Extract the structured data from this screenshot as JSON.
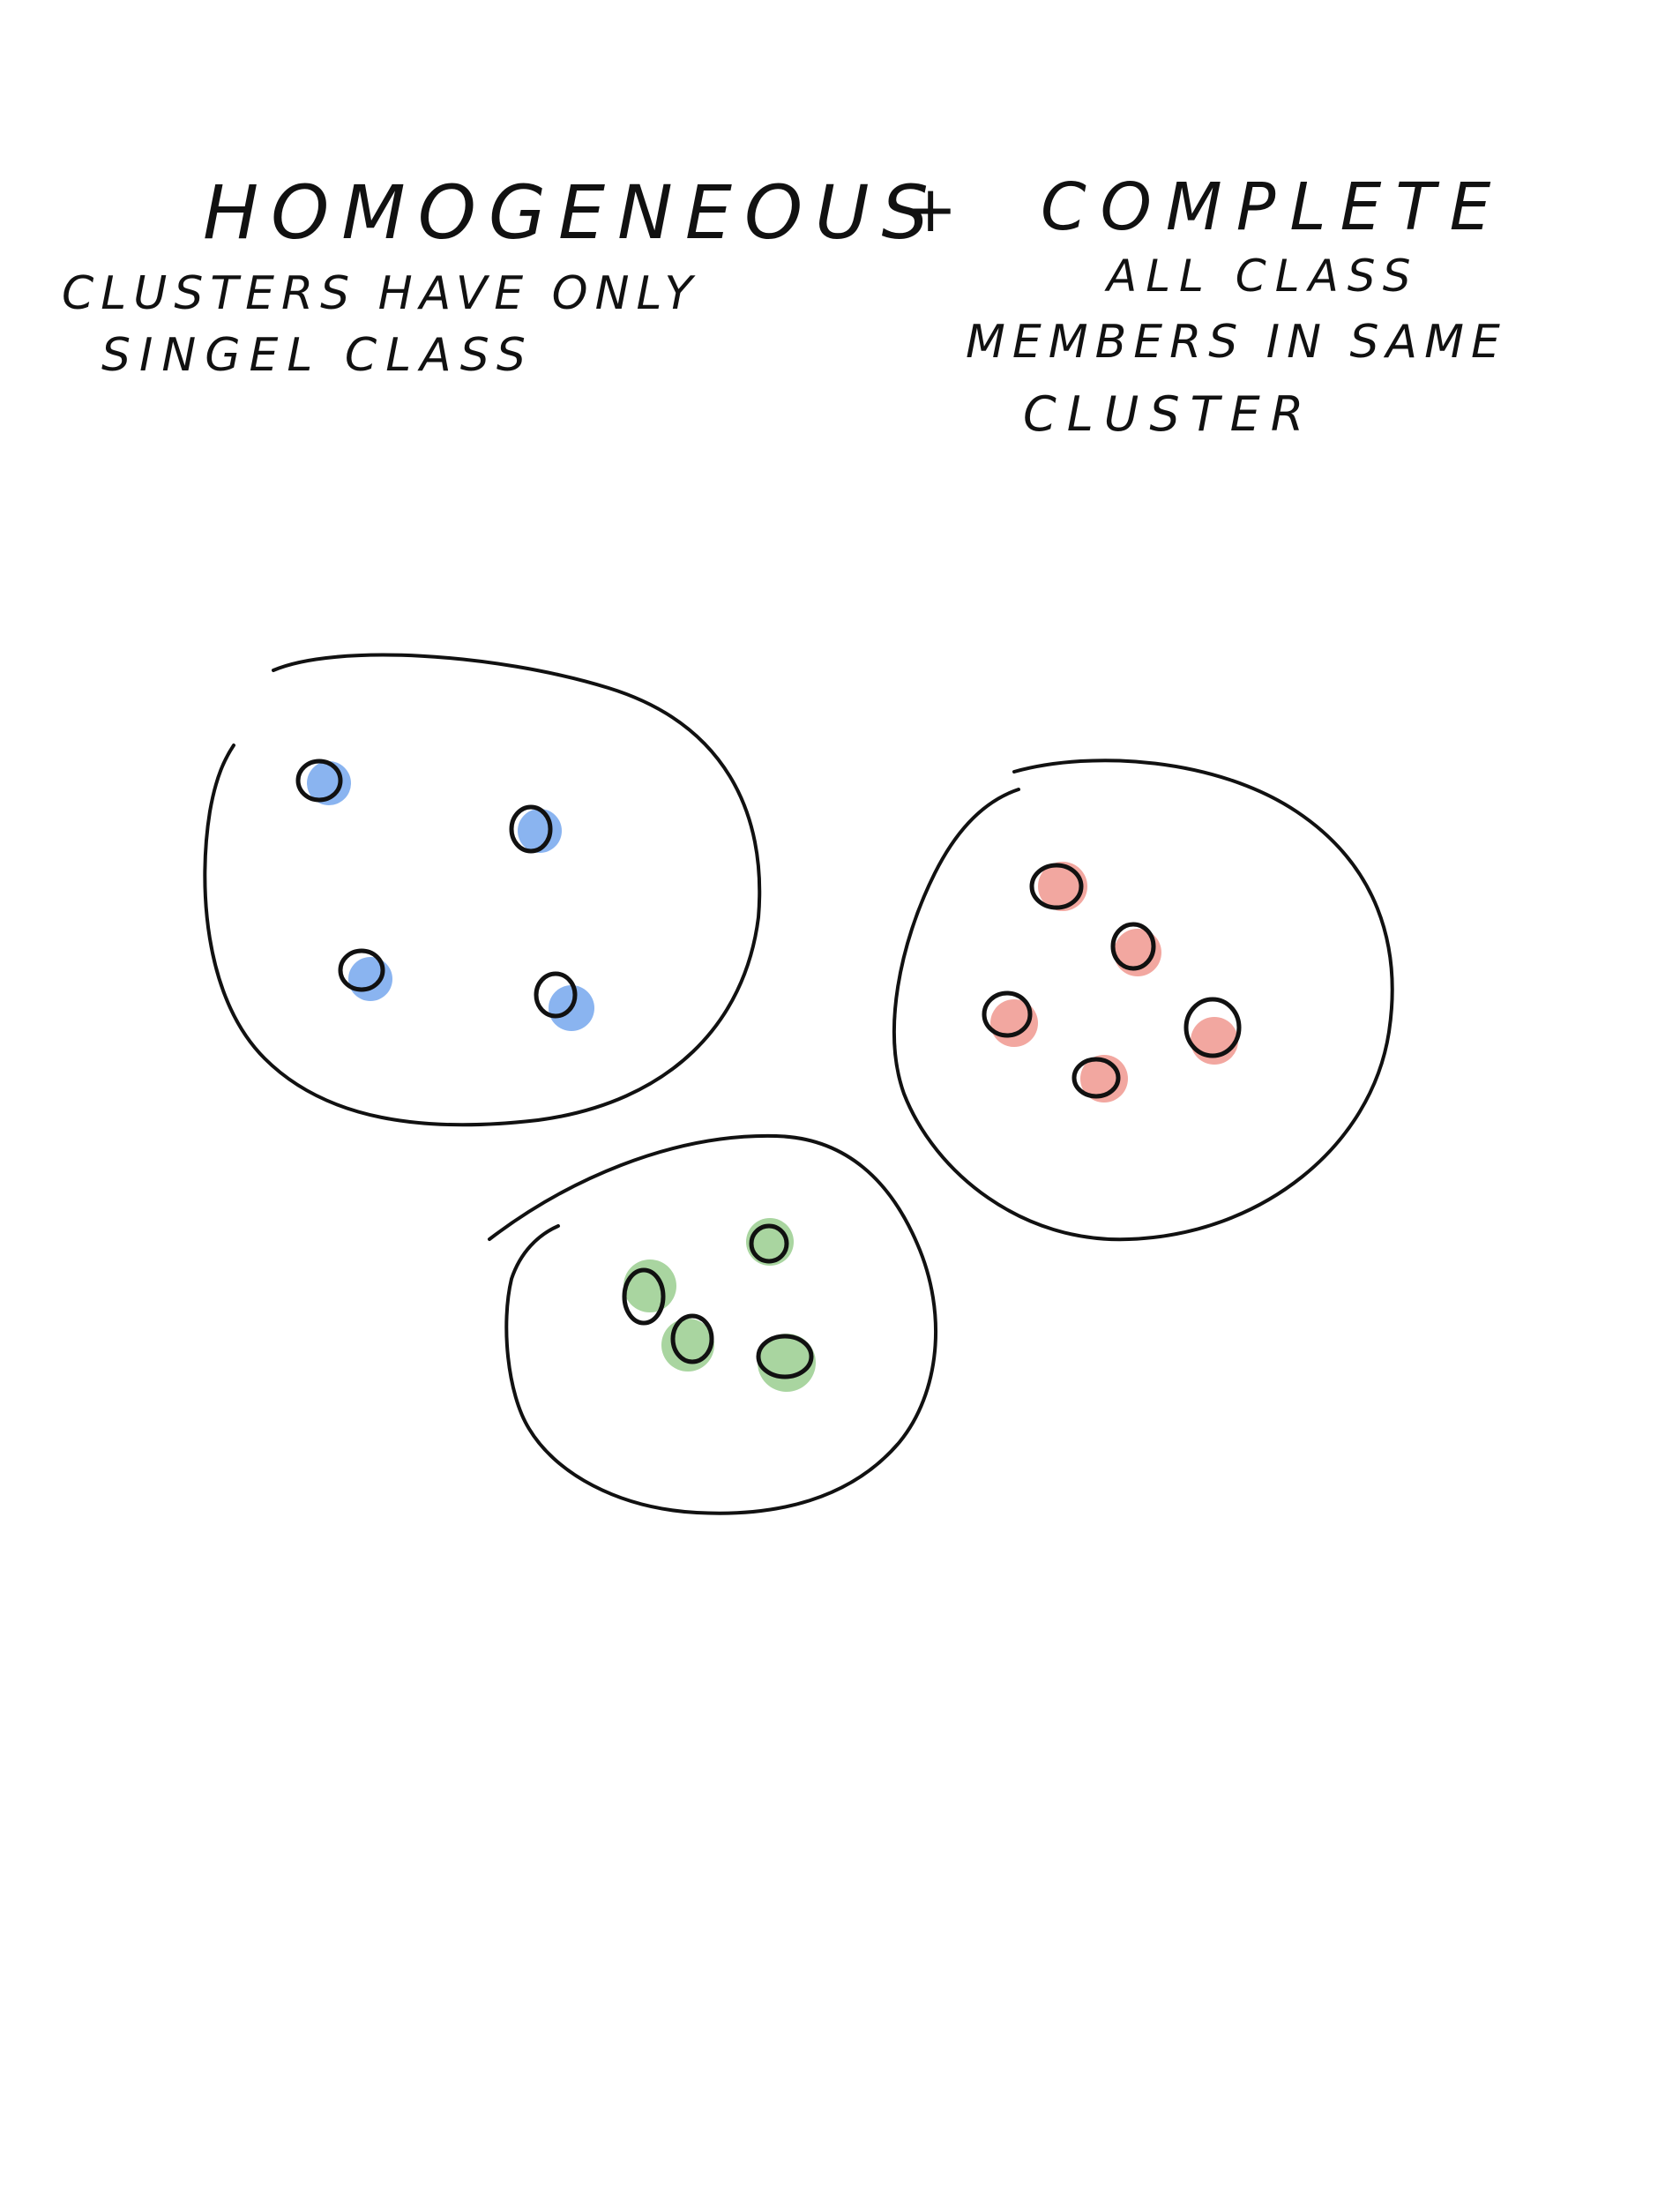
{
  "title": {
    "left": "HOMOGENEOUS",
    "plus": "+",
    "right": "COMPLETE"
  },
  "left_note": {
    "line1": "CLUSTERS HAVE ONLY",
    "line2": "SINGEL CLASS"
  },
  "right_note": {
    "line1": "ALL CLASS",
    "line2": "MEMBERS IN SAME",
    "line3": "CLUSTER"
  },
  "colors": {
    "ink": "#111111",
    "blue": "#8ab4f0",
    "red": "#f2a7a0",
    "green": "#a9d5a0"
  },
  "clusters": [
    {
      "name": "blue-cluster",
      "color": "blue",
      "point_count": 4
    },
    {
      "name": "red-cluster",
      "color": "red",
      "point_count": 5
    },
    {
      "name": "green-cluster",
      "color": "green",
      "point_count": 4
    }
  ]
}
